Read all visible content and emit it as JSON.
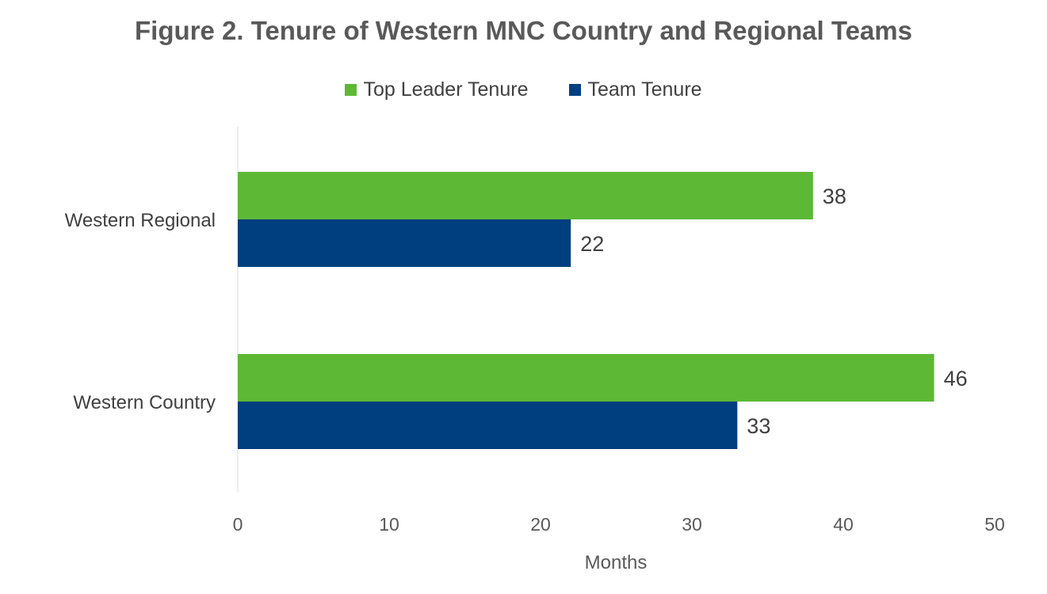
{
  "chart_data": {
    "type": "bar",
    "orientation": "horizontal",
    "title": "Figure 2. Tenure of Western MNC Country and Regional Teams",
    "xlabel": "Months",
    "ylabel": "",
    "xlim": [
      0,
      50
    ],
    "xticks": [
      "0",
      "10",
      "20",
      "30",
      "40",
      "50"
    ],
    "categories": [
      "Western Regional",
      "Western Country"
    ],
    "series": [
      {
        "name": "Top Leader Tenure",
        "color": "#5DB935",
        "values": [
          38,
          46
        ]
      },
      {
        "name": "Team Tenure",
        "color": "#003F7F",
        "values": [
          22,
          33
        ]
      }
    ],
    "legend_position": "top",
    "grid": false,
    "data_labels": true
  }
}
